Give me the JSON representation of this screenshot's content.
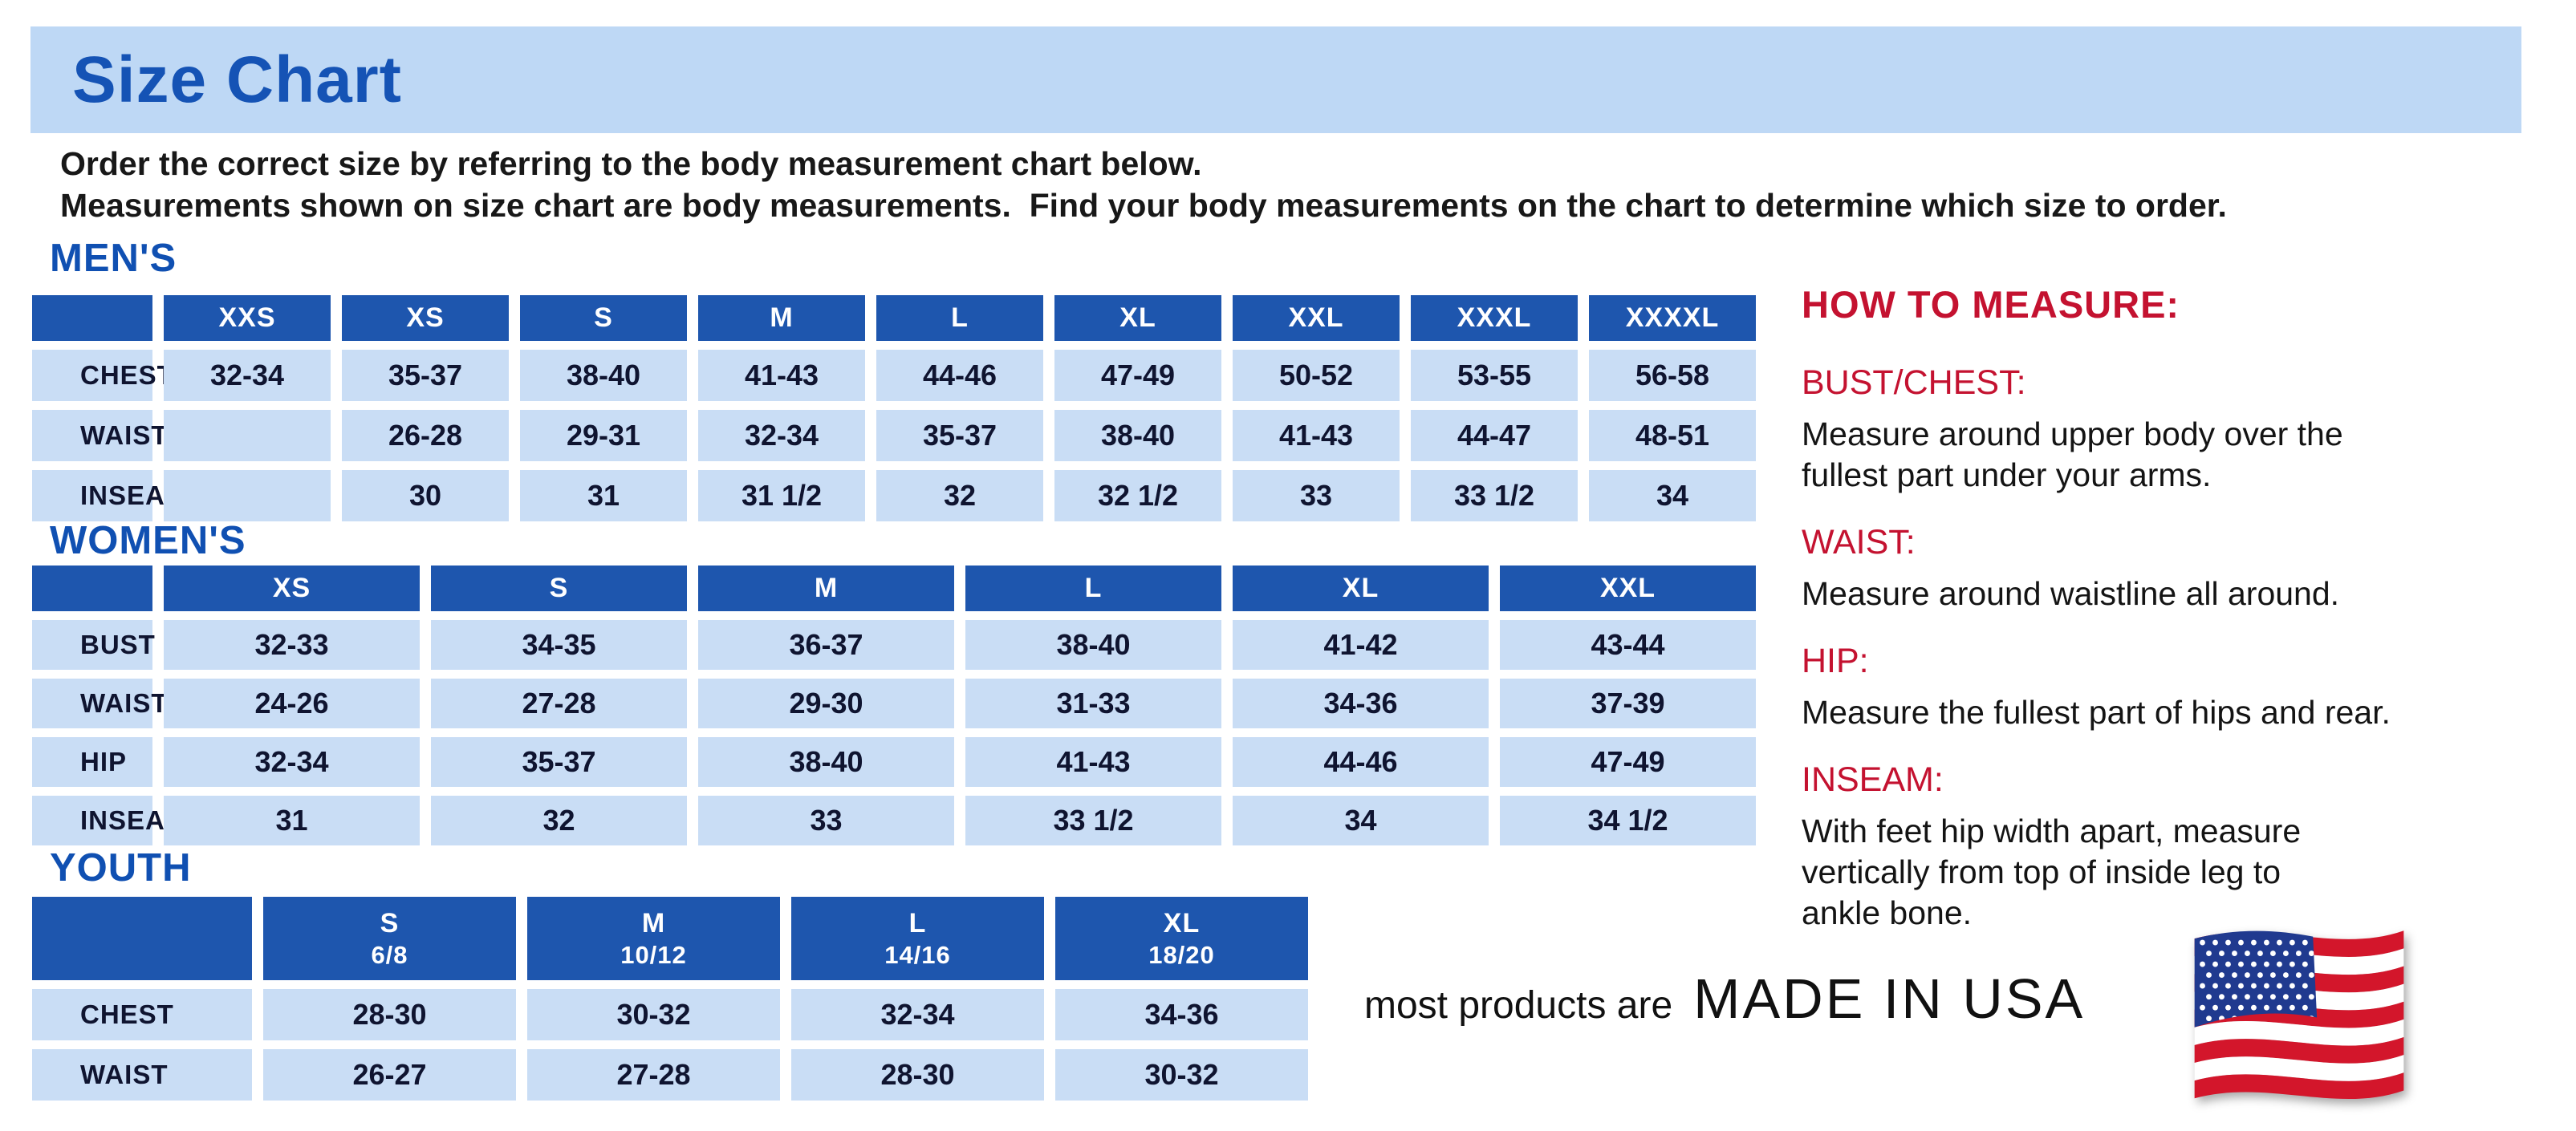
{
  "page": {
    "title": "Size Chart",
    "intro": "Order the correct size by referring to the body measurement chart below.\nMeasurements shown on size chart are body measurements.  Find your body measurements on the chart to determine which size to order."
  },
  "tables": {
    "mens": {
      "heading": "MEN'S",
      "columns": [
        {
          "size": "XXS"
        },
        {
          "size": "XS"
        },
        {
          "size": "S"
        },
        {
          "size": "M"
        },
        {
          "size": "L"
        },
        {
          "size": "XL"
        },
        {
          "size": "XXL"
        },
        {
          "size": "XXXL"
        },
        {
          "size": "XXXXL"
        }
      ],
      "rows": [
        {
          "label": "CHEST",
          "values": [
            "32-34",
            "35-37",
            "38-40",
            "41-43",
            "44-46",
            "47-49",
            "50-52",
            "53-55",
            "56-58"
          ]
        },
        {
          "label": "WAIST",
          "values": [
            "",
            "26-28",
            "29-31",
            "32-34",
            "35-37",
            "38-40",
            "41-43",
            "44-47",
            "48-51"
          ]
        },
        {
          "label": "INSEAM",
          "values": [
            "",
            "30",
            "31",
            "31 1/2",
            "32",
            "32 1/2",
            "33",
            "33 1/2",
            "34"
          ]
        }
      ]
    },
    "womens": {
      "heading": "WOMEN'S",
      "columns": [
        {
          "size": "XS"
        },
        {
          "size": "S"
        },
        {
          "size": "M"
        },
        {
          "size": "L"
        },
        {
          "size": "XL"
        },
        {
          "size": "XXL"
        }
      ],
      "rows": [
        {
          "label": "BUST",
          "values": [
            "32-33",
            "34-35",
            "36-37",
            "38-40",
            "41-42",
            "43-44"
          ]
        },
        {
          "label": "WAIST",
          "values": [
            "24-26",
            "27-28",
            "29-30",
            "31-33",
            "34-36",
            "37-39"
          ]
        },
        {
          "label": "HIP",
          "values": [
            "32-34",
            "35-37",
            "38-40",
            "41-43",
            "44-46",
            "47-49"
          ]
        },
        {
          "label": "INSEAM",
          "values": [
            "31",
            "32",
            "33",
            "33 1/2",
            "34",
            "34 1/2"
          ]
        }
      ]
    },
    "youth": {
      "heading": "YOUTH",
      "columns": [
        {
          "size": "S",
          "range": "6/8"
        },
        {
          "size": "M",
          "range": "10/12"
        },
        {
          "size": "L",
          "range": "14/16"
        },
        {
          "size": "XL",
          "range": "18/20"
        }
      ],
      "rows": [
        {
          "label": "CHEST",
          "values": [
            "28-30",
            "30-32",
            "32-34",
            "34-36"
          ]
        },
        {
          "label": "WAIST",
          "values": [
            "26-27",
            "27-28",
            "28-30",
            "30-32"
          ]
        }
      ]
    }
  },
  "how_to_measure": {
    "heading": "HOW TO MEASURE:",
    "items": [
      {
        "term": "BUST/CHEST:",
        "desc": "Measure around upper body over the\nfullest part under your arms."
      },
      {
        "term": "WAIST:",
        "desc": "Measure around waistline all around."
      },
      {
        "term": "HIP:",
        "desc": "Measure the fullest part of hips and rear."
      },
      {
        "term": "INSEAM:",
        "desc": "With feet hip width apart, measure\nvertically from top of inside leg to\nankle bone."
      }
    ]
  },
  "footer": {
    "prefix": "most products are",
    "emphasis": "MADE IN USA",
    "flag_icon": "us-flag-icon"
  },
  "colors": {
    "banner_bg": "#bed8f5",
    "heading_blue": "#1553b5",
    "table_header_bg": "#1e56ae",
    "table_cell_bg": "#c9ddf5",
    "table_text": "#0f1430",
    "accent_red": "#c41230",
    "flag_red": "#d3162b",
    "flag_blue": "#203a8f"
  }
}
